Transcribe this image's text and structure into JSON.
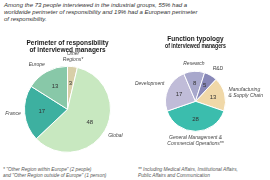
{
  "chart_data": [
    {
      "type": "pie",
      "title": "Perimeter of responsibility\nof interviewed managers",
      "subtitle": "Among the 73 people interviewed in the industrial groups, 55% had a\nworldwide perimeter of responsibility and 19% had a European perimeter\nof responsibility.",
      "categories": [
        "Other\nRegions*",
        "Global",
        "France",
        "Europe"
      ],
      "values": [
        3,
        48,
        17,
        13
      ],
      "colors": [
        "#d8cfa8",
        "#c8e8c0",
        "#3db0a0",
        "#88c8a8"
      ],
      "data_labels": true,
      "annotations": [
        "* \"Other Region within Europe\" (2 people)\nand \"Other Region outside of Europe\" (1 person)"
      ]
    },
    {
      "type": "pie",
      "title": "Function typology\nof interviewed managers",
      "categories": [
        "Manufacturing\n& Supply Chain",
        "General Management &\nCommercial Operations**",
        "Development",
        "Research",
        "R&D"
      ],
      "values": [
        13,
        28,
        17,
        8,
        5
      ],
      "colors": [
        "#f0d8a8",
        "#3bbdad",
        "#c0bcd8",
        "#a8a8cc",
        "#8888b8"
      ],
      "data_labels": true,
      "annotations": [
        "** Including Medical Affairs, Institutional Affairs,\nPublic Affairs and Communication"
      ]
    }
  ]
}
